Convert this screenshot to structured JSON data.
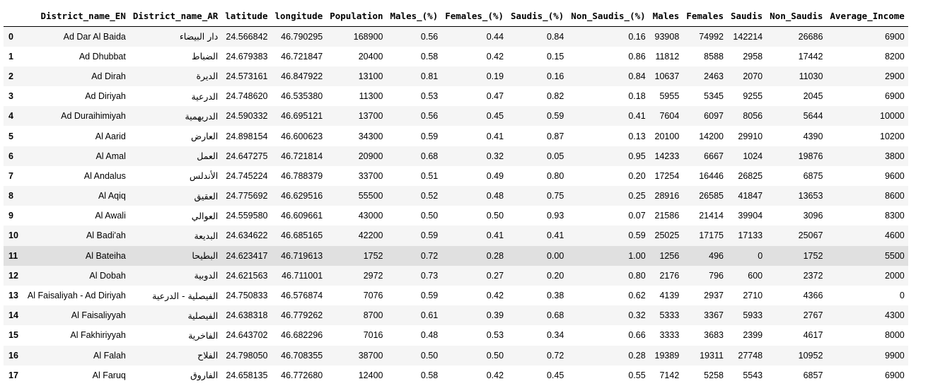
{
  "columns": [
    "",
    "District_name_EN",
    "District_name_AR",
    "latitude",
    "longitude",
    "Population",
    "Males_(%)",
    "Females_(%)",
    "Saudis_(%)",
    "Non_Saudis_(%)",
    "Males",
    "Females",
    "Saudis",
    "Non_Saudis",
    "Average_Income"
  ],
  "hovered_row_index": 11,
  "rows": [
    [
      "0",
      "Ad Dar Al Baida",
      "دار البيضاء",
      "24.566842",
      "46.790295",
      "168900",
      "0.56",
      "0.44",
      "0.84",
      "0.16",
      "93908",
      "74992",
      "142214",
      "26686",
      "6900"
    ],
    [
      "1",
      "Ad Dhubbat",
      "الضباط",
      "24.679383",
      "46.721847",
      "20400",
      "0.58",
      "0.42",
      "0.15",
      "0.86",
      "11812",
      "8588",
      "2958",
      "17442",
      "8200"
    ],
    [
      "2",
      "Ad Dirah",
      "الديرة",
      "24.573161",
      "46.847922",
      "13100",
      "0.81",
      "0.19",
      "0.16",
      "0.84",
      "10637",
      "2463",
      "2070",
      "11030",
      "2900"
    ],
    [
      "3",
      "Ad Diriyah",
      "الدرعية",
      "24.748620",
      "46.535380",
      "11300",
      "0.53",
      "0.47",
      "0.82",
      "0.18",
      "5955",
      "5345",
      "9255",
      "2045",
      "6900"
    ],
    [
      "4",
      "Ad Duraihimiyah",
      "الدريهمية",
      "24.590332",
      "46.695121",
      "13700",
      "0.56",
      "0.45",
      "0.59",
      "0.41",
      "7604",
      "6097",
      "8056",
      "5644",
      "10000"
    ],
    [
      "5",
      "Al Aarid",
      "العارض",
      "24.898154",
      "46.600623",
      "34300",
      "0.59",
      "0.41",
      "0.87",
      "0.13",
      "20100",
      "14200",
      "29910",
      "4390",
      "10200"
    ],
    [
      "6",
      "Al Amal",
      "العمل",
      "24.647275",
      "46.721814",
      "20900",
      "0.68",
      "0.32",
      "0.05",
      "0.95",
      "14233",
      "6667",
      "1024",
      "19876",
      "3800"
    ],
    [
      "7",
      "Al Andalus",
      "الأندلس",
      "24.745224",
      "46.788379",
      "33700",
      "0.51",
      "0.49",
      "0.80",
      "0.20",
      "17254",
      "16446",
      "26825",
      "6875",
      "9600"
    ],
    [
      "8",
      "Al Aqiq",
      "العقيق",
      "24.775692",
      "46.629516",
      "55500",
      "0.52",
      "0.48",
      "0.75",
      "0.25",
      "28916",
      "26585",
      "41847",
      "13653",
      "8600"
    ],
    [
      "9",
      "Al Awali",
      "العوالي",
      "24.559580",
      "46.609661",
      "43000",
      "0.50",
      "0.50",
      "0.93",
      "0.07",
      "21586",
      "21414",
      "39904",
      "3096",
      "8300"
    ],
    [
      "10",
      "Al Badi'ah",
      "البديعة",
      "24.634622",
      "46.685165",
      "42200",
      "0.59",
      "0.41",
      "0.41",
      "0.59",
      "25025",
      "17175",
      "17133",
      "25067",
      "4600"
    ],
    [
      "11",
      "Al Bateiha",
      "البطيحا",
      "24.623417",
      "46.719613",
      "1752",
      "0.72",
      "0.28",
      "0.00",
      "1.00",
      "1256",
      "496",
      "0",
      "1752",
      "5500"
    ],
    [
      "12",
      "Al Dobah",
      "الدوبية",
      "24.621563",
      "46.711001",
      "2972",
      "0.73",
      "0.27",
      "0.20",
      "0.80",
      "2176",
      "796",
      "600",
      "2372",
      "2000"
    ],
    [
      "13",
      "Al Faisaliyah - Ad Diriyah",
      "الفيصلية - الدرعية",
      "24.750833",
      "46.576874",
      "7076",
      "0.59",
      "0.42",
      "0.38",
      "0.62",
      "4139",
      "2937",
      "2710",
      "4366",
      "0"
    ],
    [
      "14",
      "Al Faisaliyyah",
      "الفيصلية",
      "24.638318",
      "46.779262",
      "8700",
      "0.61",
      "0.39",
      "0.68",
      "0.32",
      "5333",
      "3367",
      "5933",
      "2767",
      "4300"
    ],
    [
      "15",
      "Al Fakhiriyyah",
      "الفاخرية",
      "24.643702",
      "46.682296",
      "7016",
      "0.48",
      "0.53",
      "0.34",
      "0.66",
      "3333",
      "3683",
      "2399",
      "4617",
      "8000"
    ],
    [
      "16",
      "Al Falah",
      "الفلاح",
      "24.798050",
      "46.708355",
      "38700",
      "0.50",
      "0.50",
      "0.72",
      "0.28",
      "19389",
      "19311",
      "27748",
      "10952",
      "9900"
    ],
    [
      "17",
      "Al Faruq",
      "الفاروق",
      "24.658135",
      "46.772680",
      "12400",
      "0.58",
      "0.42",
      "0.45",
      "0.55",
      "7142",
      "5258",
      "5543",
      "6857",
      "6900"
    ]
  ]
}
